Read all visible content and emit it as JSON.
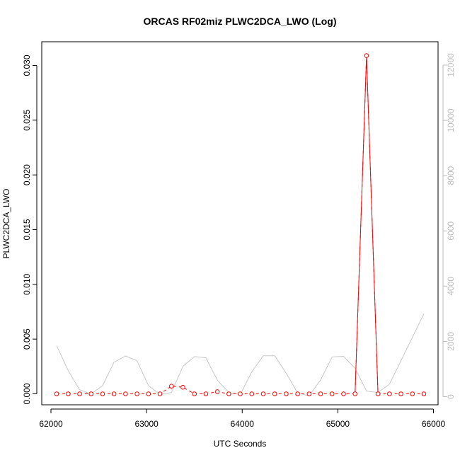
{
  "chart_data": {
    "type": "line",
    "title": "ORCAS RF02miz PLWC2DCA_LWO (Log)",
    "xlabel": "UTC Seconds",
    "ylabel": "PLWC2DCA_LWO",
    "xlim": [
      62000,
      66000
    ],
    "ylim": [
      0,
      0.032
    ],
    "y2lim": [
      0,
      12500
    ],
    "x_ticks": [
      62000,
      63000,
      64000,
      65000,
      66000
    ],
    "y_ticks": [
      "0.000",
      "0.005",
      "0.010",
      "0.015",
      "0.020",
      "0.025",
      "0.030"
    ],
    "y2_ticks": [
      0,
      2000,
      4000,
      6000,
      8000,
      10000,
      12000
    ],
    "grid": false,
    "legend": "none",
    "series": [
      {
        "axis": "left",
        "color": "#ff0000",
        "style": "dashed line with open circles",
        "x": [
          62060,
          62180,
          62300,
          62420,
          62540,
          62660,
          62780,
          62900,
          63020,
          63140,
          63260,
          63380,
          63500,
          63620,
          63740,
          63860,
          63980,
          64100,
          64220,
          64340,
          64460,
          64580,
          64700,
          64820,
          64940,
          65060,
          65180,
          65300,
          65420,
          65540,
          65660,
          65780,
          65900
        ],
        "y": [
          0,
          0,
          0,
          0,
          0,
          0,
          0,
          0,
          0,
          0,
          0.0007,
          0.0006,
          0,
          0,
          0.0002,
          0,
          0,
          0,
          0,
          0,
          0,
          0,
          0,
          0,
          0,
          0,
          0,
          0.0309,
          0,
          0,
          0,
          0,
          0
        ]
      },
      {
        "axis": "right",
        "color": "#c8c8c8",
        "style": "solid line",
        "x": [
          62060,
          62180,
          62300,
          62420,
          62540,
          62660,
          62780,
          62900,
          63020,
          63140,
          63260,
          63380,
          63500,
          63620,
          63740,
          63860,
          63980,
          64100,
          64220,
          64340,
          64460,
          64580,
          64700,
          64820,
          64940,
          65060,
          65180,
          65300,
          65420,
          65540,
          65660,
          65780,
          65900
        ],
        "y": [
          1850,
          950,
          250,
          100,
          400,
          1250,
          1470,
          1300,
          400,
          80,
          150,
          1100,
          1450,
          1410,
          600,
          150,
          80,
          900,
          1480,
          1480,
          850,
          130,
          30,
          610,
          1440,
          1460,
          1030,
          200,
          150,
          450,
          1300,
          2150,
          3000
        ]
      }
    ]
  }
}
